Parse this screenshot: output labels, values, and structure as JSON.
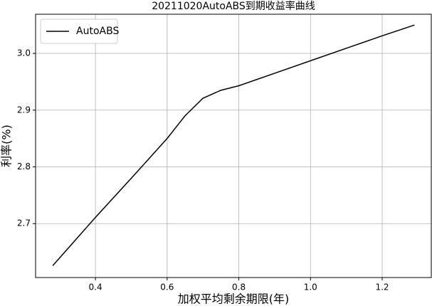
{
  "chart_data": {
    "type": "line",
    "title": "20211020AutoABS到期收益率曲线",
    "x_label": "加权平均剩余期限(年)",
    "y_label": "利率(%)",
    "x": [
      0.281,
      0.4,
      0.5,
      0.6,
      0.65,
      0.7,
      0.75,
      0.8,
      0.9,
      1.0,
      1.1,
      1.2,
      1.29
    ],
    "series": [
      {
        "name": "AutoABS",
        "color": "#000000",
        "values": [
          2.626,
          2.711,
          2.78,
          2.85,
          2.89,
          2.921,
          2.935,
          2.943,
          2.965,
          2.987,
          3.009,
          3.031,
          3.05
        ]
      }
    ],
    "xlim": [
      0.233,
      1.337
    ],
    "ylim": [
      2.605,
      3.069
    ],
    "xticks": [
      0.4,
      0.6,
      0.8,
      {
        "value": 1,
        "label": "1.0"
      },
      1.2
    ],
    "yticks": [
      2.7,
      2.8,
      2.9,
      {
        "value": 3,
        "label": "3.0"
      }
    ],
    "grid": true,
    "legend": "upper-left"
  }
}
